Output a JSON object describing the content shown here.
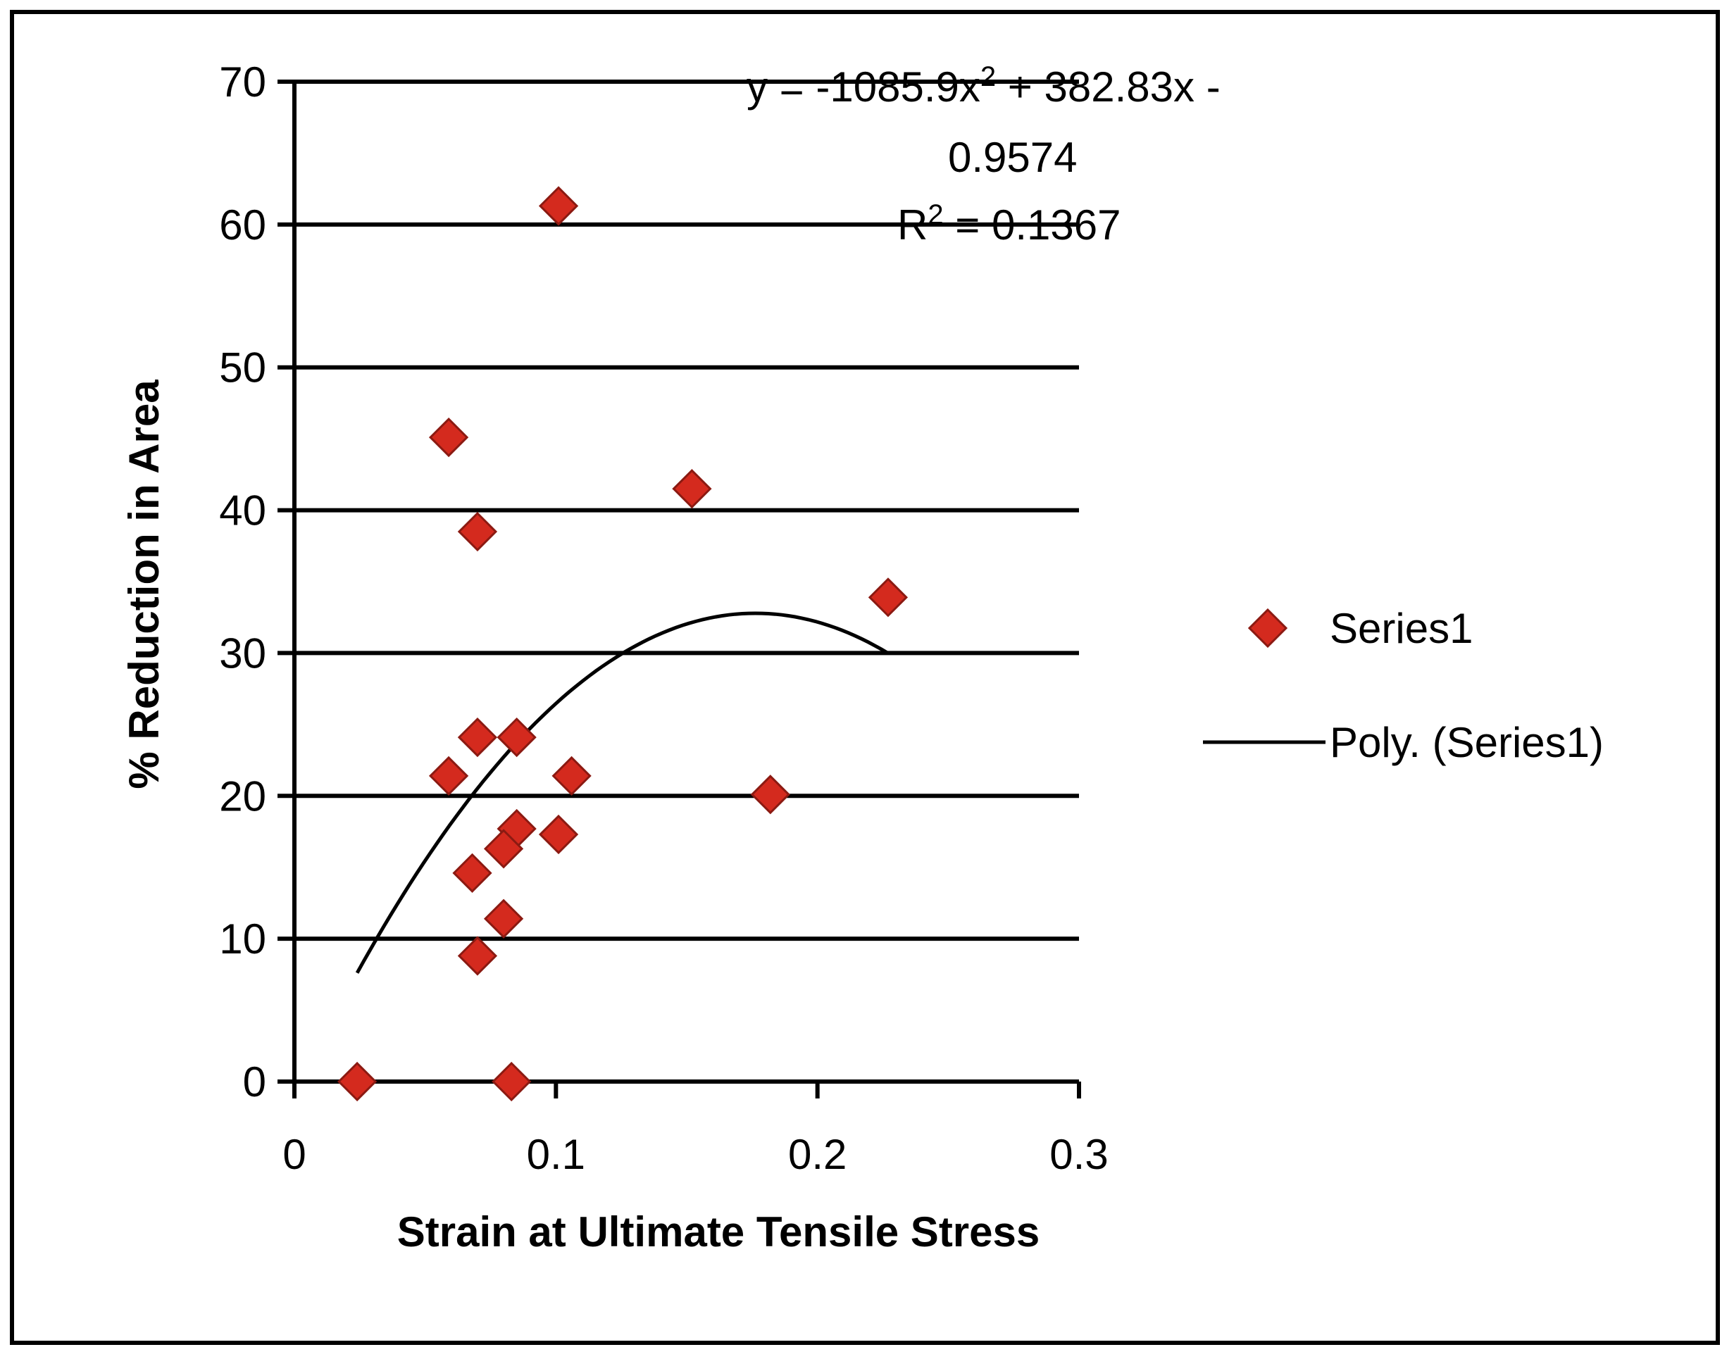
{
  "chart_data": {
    "type": "scatter",
    "title": "",
    "xlabel": "Strain at Ultimate Tensile Stress",
    "ylabel": "% Reduction in Area",
    "xlim": [
      0,
      0.3
    ],
    "ylim": [
      0,
      70
    ],
    "x_ticks": [
      "0",
      "0.1",
      "0.2",
      "0.3"
    ],
    "y_ticks": [
      "0",
      "10",
      "20",
      "30",
      "40",
      "50",
      "60",
      "70"
    ],
    "grid": true,
    "series": [
      {
        "name": "Series1",
        "marker": "diamond",
        "color": "#d42a1e",
        "points": [
          [
            0.024,
            0
          ],
          [
            0.083,
            0
          ],
          [
            0.101,
            61.3
          ],
          [
            0.059,
            45.1
          ],
          [
            0.152,
            41.5
          ],
          [
            0.07,
            38.5
          ],
          [
            0.227,
            33.9
          ],
          [
            0.07,
            24.1
          ],
          [
            0.085,
            24.1
          ],
          [
            0.059,
            21.4
          ],
          [
            0.106,
            21.4
          ],
          [
            0.182,
            20.1
          ],
          [
            0.101,
            17.3
          ],
          [
            0.085,
            17.7
          ],
          [
            0.08,
            16.3
          ],
          [
            0.068,
            14.6
          ],
          [
            0.08,
            11.4
          ],
          [
            0.07,
            8.8
          ]
        ]
      }
    ],
    "trendline": {
      "name": "Poly. (Series1)",
      "type": "polynomial",
      "order": 2,
      "coefficients": [
        -1085.9,
        382.83,
        -0.9574
      ],
      "x_range": [
        0.024,
        0.227
      ],
      "color": "#000000"
    },
    "annotations": {
      "equation_parts": {
        "line1_a": "y = -1085.9x",
        "line1_exp": "2",
        "line1_b": " + 382.83x -",
        "line2": "0.9574",
        "line3_a": "R",
        "line3_exp": "2",
        "line3_b": " = 0.1367"
      }
    },
    "legend": {
      "placement": "right",
      "entries": [
        "Series1",
        "Poly. (Series1)"
      ]
    }
  }
}
